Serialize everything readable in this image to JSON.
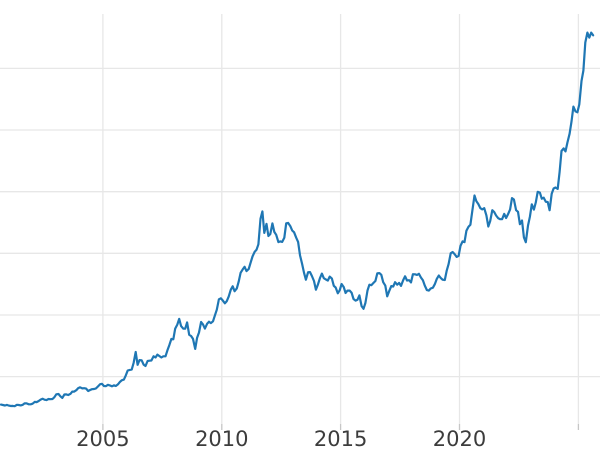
{
  "chart_data": {
    "type": "line",
    "title": "",
    "xlabel": "",
    "ylabel": "",
    "legend": null,
    "grid": true,
    "background_color": "#ffffff",
    "line_color": "#1f77b4",
    "line_width": 2.2,
    "grid_color": "#e7e7e7",
    "tick_mark_color": "#c6c6c6",
    "tick_label_color": "#3c3c3c",
    "x_domain": [
      2000.67,
      2025.91
    ],
    "y_domain": [
      116,
      3441
    ],
    "x_ticks": [
      {
        "value": 2005,
        "label": "2005"
      },
      {
        "value": 2010,
        "label": "2010"
      },
      {
        "value": 2015,
        "label": "2015"
      },
      {
        "value": 2020,
        "label": "2020"
      },
      {
        "value": 2025,
        "label": ""
      }
    ],
    "y_gridlines": [
      500,
      1000,
      1500,
      2000,
      2500,
      3000
    ],
    "y_tick_labels_visible": false,
    "points": [
      [
        2000.71,
        273
      ],
      [
        2000.79,
        270
      ],
      [
        2000.88,
        266
      ],
      [
        2000.96,
        271
      ],
      [
        2001.04,
        265
      ],
      [
        2001.13,
        262
      ],
      [
        2001.21,
        263
      ],
      [
        2001.29,
        260
      ],
      [
        2001.38,
        272
      ],
      [
        2001.46,
        270
      ],
      [
        2001.54,
        267
      ],
      [
        2001.63,
        272
      ],
      [
        2001.71,
        284
      ],
      [
        2001.79,
        283
      ],
      [
        2001.88,
        276
      ],
      [
        2001.96,
        276
      ],
      [
        2002.04,
        281
      ],
      [
        2002.13,
        295
      ],
      [
        2002.21,
        294
      ],
      [
        2002.29,
        302
      ],
      [
        2002.38,
        314
      ],
      [
        2002.46,
        321
      ],
      [
        2002.54,
        313
      ],
      [
        2002.63,
        310
      ],
      [
        2002.71,
        319
      ],
      [
        2002.79,
        317
      ],
      [
        2002.88,
        319
      ],
      [
        2002.96,
        333
      ],
      [
        2003.04,
        357
      ],
      [
        2003.13,
        359
      ],
      [
        2003.21,
        341
      ],
      [
        2003.29,
        328
      ],
      [
        2003.38,
        355
      ],
      [
        2003.46,
        356
      ],
      [
        2003.54,
        351
      ],
      [
        2003.63,
        360
      ],
      [
        2003.71,
        379
      ],
      [
        2003.79,
        379
      ],
      [
        2003.88,
        390
      ],
      [
        2003.96,
        407
      ],
      [
        2004.04,
        414
      ],
      [
        2004.13,
        405
      ],
      [
        2004.21,
        406
      ],
      [
        2004.29,
        403
      ],
      [
        2004.38,
        384
      ],
      [
        2004.46,
        392
      ],
      [
        2004.54,
        398
      ],
      [
        2004.63,
        400
      ],
      [
        2004.71,
        405
      ],
      [
        2004.79,
        420
      ],
      [
        2004.88,
        439
      ],
      [
        2004.96,
        442
      ],
      [
        2005.04,
        424
      ],
      [
        2005.13,
        423
      ],
      [
        2005.21,
        434
      ],
      [
        2005.29,
        429
      ],
      [
        2005.38,
        422
      ],
      [
        2005.46,
        430
      ],
      [
        2005.54,
        424
      ],
      [
        2005.63,
        437
      ],
      [
        2005.71,
        456
      ],
      [
        2005.79,
        470
      ],
      [
        2005.88,
        476
      ],
      [
        2005.96,
        510
      ],
      [
        2006.04,
        550
      ],
      [
        2006.13,
        555
      ],
      [
        2006.21,
        557
      ],
      [
        2006.29,
        611
      ],
      [
        2006.38,
        700
      ],
      [
        2006.46,
        596
      ],
      [
        2006.54,
        634
      ],
      [
        2006.63,
        632
      ],
      [
        2006.71,
        598
      ],
      [
        2006.79,
        586
      ],
      [
        2006.88,
        627
      ],
      [
        2006.96,
        629
      ],
      [
        2007.04,
        631
      ],
      [
        2007.13,
        665
      ],
      [
        2007.21,
        655
      ],
      [
        2007.29,
        679
      ],
      [
        2007.38,
        667
      ],
      [
        2007.46,
        655
      ],
      [
        2007.54,
        665
      ],
      [
        2007.63,
        665
      ],
      [
        2007.71,
        713
      ],
      [
        2007.79,
        755
      ],
      [
        2007.88,
        806
      ],
      [
        2007.96,
        803
      ],
      [
        2008.04,
        890
      ],
      [
        2008.13,
        922
      ],
      [
        2008.21,
        968
      ],
      [
        2008.29,
        910
      ],
      [
        2008.38,
        889
      ],
      [
        2008.46,
        889
      ],
      [
        2008.54,
        940
      ],
      [
        2008.63,
        839
      ],
      [
        2008.71,
        830
      ],
      [
        2008.79,
        806
      ],
      [
        2008.88,
        725
      ],
      [
        2008.96,
        816
      ],
      [
        2009.04,
        858
      ],
      [
        2009.13,
        943
      ],
      [
        2009.21,
        924
      ],
      [
        2009.29,
        890
      ],
      [
        2009.38,
        929
      ],
      [
        2009.46,
        946
      ],
      [
        2009.54,
        934
      ],
      [
        2009.63,
        949
      ],
      [
        2009.71,
        997
      ],
      [
        2009.79,
        1043
      ],
      [
        2009.88,
        1127
      ],
      [
        2009.96,
        1135
      ],
      [
        2010.04,
        1118
      ],
      [
        2010.13,
        1095
      ],
      [
        2010.21,
        1113
      ],
      [
        2010.29,
        1149
      ],
      [
        2010.38,
        1205
      ],
      [
        2010.46,
        1233
      ],
      [
        2010.54,
        1193
      ],
      [
        2010.63,
        1216
      ],
      [
        2010.71,
        1271
      ],
      [
        2010.79,
        1342
      ],
      [
        2010.88,
        1370
      ],
      [
        2010.96,
        1391
      ],
      [
        2011.04,
        1356
      ],
      [
        2011.13,
        1373
      ],
      [
        2011.21,
        1424
      ],
      [
        2011.29,
        1474
      ],
      [
        2011.38,
        1512
      ],
      [
        2011.46,
        1529
      ],
      [
        2011.54,
        1573
      ],
      [
        2011.63,
        1780
      ],
      [
        2011.71,
        1840
      ],
      [
        2011.79,
        1666
      ],
      [
        2011.88,
        1739
      ],
      [
        2011.96,
        1641
      ],
      [
        2012.04,
        1656
      ],
      [
        2012.13,
        1743
      ],
      [
        2012.21,
        1674
      ],
      [
        2012.29,
        1650
      ],
      [
        2012.38,
        1591
      ],
      [
        2012.46,
        1597
      ],
      [
        2012.54,
        1593
      ],
      [
        2012.63,
        1626
      ],
      [
        2012.71,
        1744
      ],
      [
        2012.79,
        1747
      ],
      [
        2012.88,
        1721
      ],
      [
        2012.96,
        1685
      ],
      [
        2013.04,
        1671
      ],
      [
        2013.13,
        1627
      ],
      [
        2013.21,
        1593
      ],
      [
        2013.29,
        1485
      ],
      [
        2013.38,
        1414
      ],
      [
        2013.46,
        1343
      ],
      [
        2013.54,
        1286
      ],
      [
        2013.63,
        1347
      ],
      [
        2013.71,
        1348
      ],
      [
        2013.79,
        1316
      ],
      [
        2013.88,
        1276
      ],
      [
        2013.96,
        1205
      ],
      [
        2014.04,
        1244
      ],
      [
        2014.13,
        1300
      ],
      [
        2014.21,
        1336
      ],
      [
        2014.29,
        1298
      ],
      [
        2014.38,
        1288
      ],
      [
        2014.46,
        1279
      ],
      [
        2014.54,
        1311
      ],
      [
        2014.63,
        1295
      ],
      [
        2014.71,
        1237
      ],
      [
        2014.79,
        1222
      ],
      [
        2014.88,
        1176
      ],
      [
        2014.96,
        1200
      ],
      [
        2015.04,
        1251
      ],
      [
        2015.13,
        1227
      ],
      [
        2015.21,
        1178
      ],
      [
        2015.29,
        1198
      ],
      [
        2015.38,
        1198
      ],
      [
        2015.46,
        1181
      ],
      [
        2015.54,
        1130
      ],
      [
        2015.63,
        1117
      ],
      [
        2015.71,
        1124
      ],
      [
        2015.79,
        1159
      ],
      [
        2015.88,
        1072
      ],
      [
        2015.96,
        1050
      ],
      [
        2016.04,
        1097
      ],
      [
        2016.13,
        1199
      ],
      [
        2016.21,
        1246
      ],
      [
        2016.29,
        1242
      ],
      [
        2016.38,
        1260
      ],
      [
        2016.46,
        1276
      ],
      [
        2016.54,
        1337
      ],
      [
        2016.63,
        1340
      ],
      [
        2016.71,
        1326
      ],
      [
        2016.79,
        1266
      ],
      [
        2016.88,
        1238
      ],
      [
        2016.96,
        1152
      ],
      [
        2017.04,
        1192
      ],
      [
        2017.13,
        1234
      ],
      [
        2017.21,
        1231
      ],
      [
        2017.29,
        1266
      ],
      [
        2017.38,
        1246
      ],
      [
        2017.46,
        1260
      ],
      [
        2017.54,
        1236
      ],
      [
        2017.63,
        1283
      ],
      [
        2017.71,
        1314
      ],
      [
        2017.79,
        1280
      ],
      [
        2017.88,
        1282
      ],
      [
        2017.96,
        1264
      ],
      [
        2018.04,
        1331
      ],
      [
        2018.13,
        1330
      ],
      [
        2018.21,
        1325
      ],
      [
        2018.29,
        1334
      ],
      [
        2018.38,
        1303
      ],
      [
        2018.46,
        1281
      ],
      [
        2018.54,
        1238
      ],
      [
        2018.63,
        1202
      ],
      [
        2018.71,
        1198
      ],
      [
        2018.79,
        1215
      ],
      [
        2018.88,
        1221
      ],
      [
        2018.96,
        1250
      ],
      [
        2019.04,
        1291
      ],
      [
        2019.13,
        1320
      ],
      [
        2019.21,
        1301
      ],
      [
        2019.29,
        1286
      ],
      [
        2019.38,
        1284
      ],
      [
        2019.46,
        1359
      ],
      [
        2019.54,
        1413
      ],
      [
        2019.63,
        1500
      ],
      [
        2019.71,
        1511
      ],
      [
        2019.79,
        1495
      ],
      [
        2019.88,
        1471
      ],
      [
        2019.96,
        1479
      ],
      [
        2020.04,
        1561
      ],
      [
        2020.13,
        1597
      ],
      [
        2020.21,
        1591
      ],
      [
        2020.29,
        1683
      ],
      [
        2020.38,
        1716
      ],
      [
        2020.46,
        1732
      ],
      [
        2020.54,
        1843
      ],
      [
        2020.63,
        1969
      ],
      [
        2020.71,
        1922
      ],
      [
        2020.79,
        1900
      ],
      [
        2020.88,
        1866
      ],
      [
        2020.96,
        1856
      ],
      [
        2021.04,
        1867
      ],
      [
        2021.13,
        1808
      ],
      [
        2021.21,
        1718
      ],
      [
        2021.29,
        1762
      ],
      [
        2021.38,
        1850
      ],
      [
        2021.46,
        1835
      ],
      [
        2021.54,
        1807
      ],
      [
        2021.63,
        1784
      ],
      [
        2021.71,
        1777
      ],
      [
        2021.79,
        1777
      ],
      [
        2021.88,
        1820
      ],
      [
        2021.96,
        1787
      ],
      [
        2022.04,
        1817
      ],
      [
        2022.13,
        1856
      ],
      [
        2022.21,
        1948
      ],
      [
        2022.29,
        1937
      ],
      [
        2022.38,
        1850
      ],
      [
        2022.46,
        1837
      ],
      [
        2022.54,
        1736
      ],
      [
        2022.63,
        1766
      ],
      [
        2022.71,
        1630
      ],
      [
        2022.79,
        1590
      ],
      [
        2022.88,
        1725
      ],
      [
        2022.96,
        1797
      ],
      [
        2023.04,
        1898
      ],
      [
        2023.13,
        1855
      ],
      [
        2023.21,
        1913
      ],
      [
        2023.29,
        1999
      ],
      [
        2023.38,
        1992
      ],
      [
        2023.46,
        1943
      ],
      [
        2023.54,
        1951
      ],
      [
        2023.63,
        1918
      ],
      [
        2023.71,
        1916
      ],
      [
        2023.79,
        1850
      ],
      [
        2023.88,
        1984
      ],
      [
        2023.96,
        2026
      ],
      [
        2024.04,
        2034
      ],
      [
        2024.13,
        2023
      ],
      [
        2024.21,
        2160
      ],
      [
        2024.29,
        2330
      ],
      [
        2024.38,
        2351
      ],
      [
        2024.46,
        2327
      ],
      [
        2024.54,
        2398
      ],
      [
        2024.63,
        2470
      ],
      [
        2024.71,
        2568
      ],
      [
        2024.79,
        2690
      ],
      [
        2024.88,
        2651
      ],
      [
        2024.96,
        2644
      ],
      [
        2025.04,
        2708
      ],
      [
        2025.13,
        2897
      ],
      [
        2025.21,
        2983
      ],
      [
        2025.29,
        3210
      ],
      [
        2025.38,
        3290
      ],
      [
        2025.46,
        3250
      ],
      [
        2025.54,
        3290
      ],
      [
        2025.62,
        3268
      ]
    ]
  }
}
